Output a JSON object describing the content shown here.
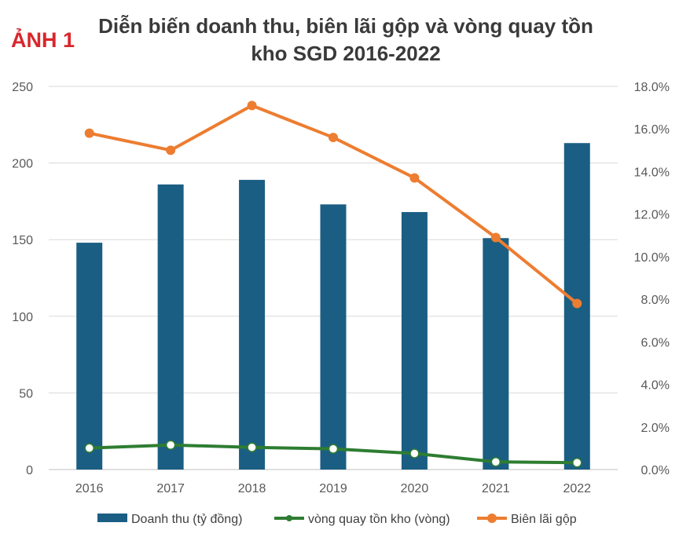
{
  "badge": "ẢNH 1",
  "chart_data": {
    "type": "bar",
    "title_line1": "Diễn biến doanh thu, biên lãi gộp và vòng quay tồn",
    "title_line2": "kho SGD 2016-2022",
    "categories": [
      "2016",
      "2017",
      "2018",
      "2019",
      "2020",
      "2021",
      "2022"
    ],
    "y_left": {
      "ylim": [
        0,
        250
      ],
      "ticks": [
        "0",
        "50",
        "100",
        "150",
        "200",
        "250"
      ]
    },
    "y_right": {
      "ylim": [
        0,
        18
      ],
      "ticks": [
        "0.0%",
        "2.0%",
        "4.0%",
        "6.0%",
        "8.0%",
        "10.0%",
        "12.0%",
        "14.0%",
        "16.0%",
        "18.0%"
      ]
    },
    "grid": "horizontal",
    "legend_position": "bottom",
    "series": [
      {
        "name": "Doanh thu (tỷ đồng)",
        "type": "bar",
        "axis": "left",
        "color": "#1b5e83",
        "values": [
          148,
          186,
          189,
          173,
          168,
          151,
          213
        ]
      },
      {
        "name": "vòng quay tồn kho (vòng)",
        "type": "line",
        "axis": "left",
        "color": "#2e7d32",
        "values": [
          14,
          16,
          14.5,
          13.5,
          10.5,
          5,
          4.5
        ]
      },
      {
        "name": "Biên lãi gộp",
        "type": "line",
        "axis": "right",
        "unit": "%",
        "color": "#ed7d31",
        "values": [
          15.8,
          15.0,
          17.1,
          15.6,
          13.7,
          10.9,
          7.8
        ]
      }
    ]
  }
}
